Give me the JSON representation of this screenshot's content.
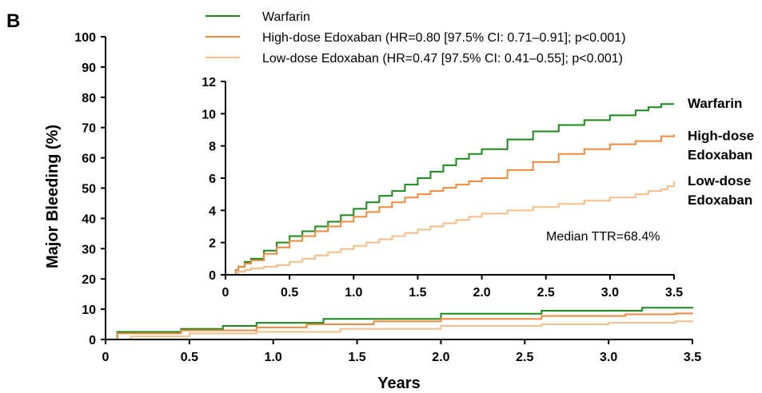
{
  "panel_label": "B",
  "chart_data": [
    {
      "type": "line",
      "step": true,
      "xlabel": "Years",
      "ylabel": "Major Bleeding (%)",
      "xlim": [
        0,
        3.5
      ],
      "ylim": [
        0,
        100
      ],
      "x_ticks": [
        "0",
        "0.5",
        "1.0",
        "1.5",
        "2.0",
        "2.5",
        "3.0",
        "3.5"
      ],
      "y_ticks": [
        "0",
        "10",
        "20",
        "30",
        "40",
        "50",
        "60",
        "70",
        "80",
        "90",
        "100"
      ],
      "legend": {
        "position": "top",
        "entries": [
          "Warfarin",
          "High-dose Edoxaban (HR=0.80 [97.5% CI: 0.71–0.91]; p<0.001)",
          "Low-dose Edoxaban (HR=0.47 [97.5% CI: 0.41–0.55]; p<0.001)"
        ]
      },
      "series": [
        {
          "name": "Warfarin",
          "color": "#1a8a1a",
          "x": [
            0,
            0.07,
            0.45,
            0.7,
            0.9,
            1.3,
            2.0,
            2.6,
            3.2,
            3.5
          ],
          "y": [
            0,
            2.5,
            3.5,
            4.5,
            5.5,
            6.8,
            8.5,
            9.5,
            10.5,
            10.8
          ]
        },
        {
          "name": "High-dose Edoxaban",
          "color": "#ef8a3c",
          "x": [
            0,
            0.07,
            0.45,
            0.9,
            1.2,
            1.6,
            2.0,
            2.6,
            3.1,
            3.4,
            3.5
          ],
          "y": [
            0,
            2.0,
            3.0,
            4.0,
            5.0,
            6.0,
            6.8,
            7.8,
            8.3,
            8.6,
            8.7
          ]
        },
        {
          "name": "Low-dose Edoxaban",
          "color": "#f5bd8a",
          "x": [
            0,
            0.15,
            0.5,
            0.9,
            1.4,
            2.0,
            2.6,
            3.0,
            3.4,
            3.5
          ],
          "y": [
            0,
            1.0,
            2.0,
            2.5,
            3.5,
            4.5,
            5.0,
            5.5,
            6.0,
            6.2
          ]
        }
      ]
    },
    {
      "type": "line",
      "step": true,
      "role": "inset",
      "xlim": [
        0,
        3.5
      ],
      "ylim": [
        0,
        12
      ],
      "x_ticks": [
        "0",
        "0.5",
        "1.0",
        "1.5",
        "2.0",
        "2.5",
        "3.0",
        "3.5"
      ],
      "y_ticks": [
        "0",
        "2",
        "4",
        "6",
        "8",
        "10",
        "12"
      ],
      "annotation": "Median TTR=68.4%",
      "series_labels": [
        {
          "lines": [
            "Warfarin"
          ],
          "y": 10.6
        },
        {
          "lines": [
            "High-dose",
            "Edoxaban"
          ],
          "y": 8.6
        },
        {
          "lines": [
            "Low-dose",
            "Edoxaban"
          ],
          "y": 5.8
        }
      ],
      "series": [
        {
          "name": "Warfarin",
          "color": "#1a8a1a",
          "x": [
            0,
            0.08,
            0.1,
            0.15,
            0.2,
            0.3,
            0.4,
            0.5,
            0.6,
            0.7,
            0.8,
            0.9,
            1.0,
            1.1,
            1.2,
            1.3,
            1.4,
            1.5,
            1.6,
            1.7,
            1.8,
            1.9,
            2.0,
            2.2,
            2.4,
            2.6,
            2.8,
            3.0,
            3.2,
            3.3,
            3.4,
            3.5
          ],
          "y": [
            0,
            0.3,
            0.5,
            0.8,
            1.0,
            1.5,
            2.0,
            2.4,
            2.7,
            3.0,
            3.3,
            3.7,
            4.1,
            4.5,
            4.9,
            5.2,
            5.6,
            6.0,
            6.4,
            6.8,
            7.2,
            7.5,
            7.8,
            8.4,
            8.9,
            9.3,
            9.6,
            9.9,
            10.2,
            10.4,
            10.6,
            10.6
          ]
        },
        {
          "name": "High-dose Edoxaban",
          "color": "#ef8a3c",
          "x": [
            0,
            0.08,
            0.1,
            0.15,
            0.2,
            0.3,
            0.4,
            0.5,
            0.6,
            0.7,
            0.8,
            0.9,
            1.0,
            1.1,
            1.2,
            1.3,
            1.4,
            1.5,
            1.6,
            1.7,
            1.8,
            1.9,
            2.0,
            2.2,
            2.4,
            2.6,
            2.8,
            3.0,
            3.2,
            3.4,
            3.5
          ],
          "y": [
            0,
            0.3,
            0.5,
            0.7,
            0.9,
            1.3,
            1.7,
            2.1,
            2.4,
            2.7,
            3.0,
            3.3,
            3.6,
            3.9,
            4.2,
            4.5,
            4.8,
            5.0,
            5.2,
            5.4,
            5.6,
            5.8,
            6.0,
            6.5,
            7.0,
            7.5,
            7.8,
            8.1,
            8.3,
            8.6,
            8.7
          ]
        },
        {
          "name": "Low-dose Edoxaban",
          "color": "#f5bd8a",
          "x": [
            0,
            0.1,
            0.15,
            0.2,
            0.3,
            0.4,
            0.5,
            0.6,
            0.7,
            0.8,
            0.9,
            1.0,
            1.1,
            1.2,
            1.3,
            1.4,
            1.5,
            1.6,
            1.7,
            1.8,
            1.9,
            2.0,
            2.2,
            2.4,
            2.6,
            2.8,
            3.0,
            3.2,
            3.3,
            3.4,
            3.45,
            3.5
          ],
          "y": [
            0,
            0.2,
            0.3,
            0.4,
            0.5,
            0.6,
            0.8,
            1.0,
            1.2,
            1.4,
            1.6,
            1.8,
            2.0,
            2.2,
            2.4,
            2.6,
            2.8,
            3.0,
            3.2,
            3.4,
            3.6,
            3.8,
            4.0,
            4.2,
            4.4,
            4.6,
            4.8,
            5.0,
            5.2,
            5.3,
            5.5,
            5.8
          ]
        }
      ]
    }
  ]
}
